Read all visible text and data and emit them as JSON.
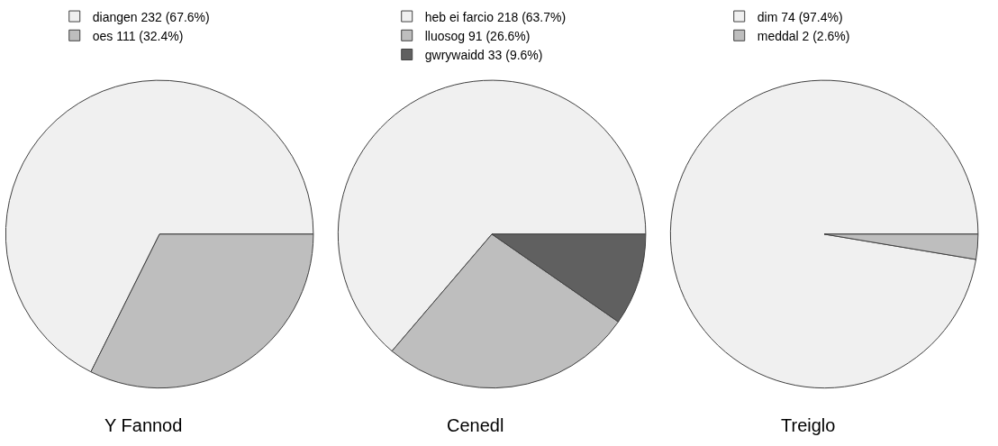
{
  "chart_data": [
    {
      "type": "pie",
      "title": "Y Fannod",
      "categories": [
        "diangen",
        "oes"
      ],
      "values": [
        232,
        111
      ],
      "value_labels": [
        "232 (67.6%)",
        "111 (32.4%)"
      ],
      "colors": [
        "#f0f0f0",
        "#bebebe"
      ],
      "legend": "top left"
    },
    {
      "type": "pie",
      "title": "Cenedl",
      "categories": [
        "heb ei farcio",
        "lluosog",
        "gwrywaidd"
      ],
      "values": [
        218,
        91,
        33
      ],
      "value_labels": [
        "218 (63.7%)",
        "91 (26.6%)",
        "33 (9.6%)"
      ],
      "colors": [
        "#f0f0f0",
        "#bebebe",
        "#606060"
      ],
      "legend": "top left"
    },
    {
      "type": "pie",
      "title": "Treiglo",
      "categories": [
        "dim",
        "meddal"
      ],
      "values": [
        74,
        2
      ],
      "value_labels": [
        "74 (97.4%)",
        "2 (2.6%)"
      ],
      "colors": [
        "#f0f0f0",
        "#bebebe"
      ],
      "legend": "top left"
    }
  ]
}
